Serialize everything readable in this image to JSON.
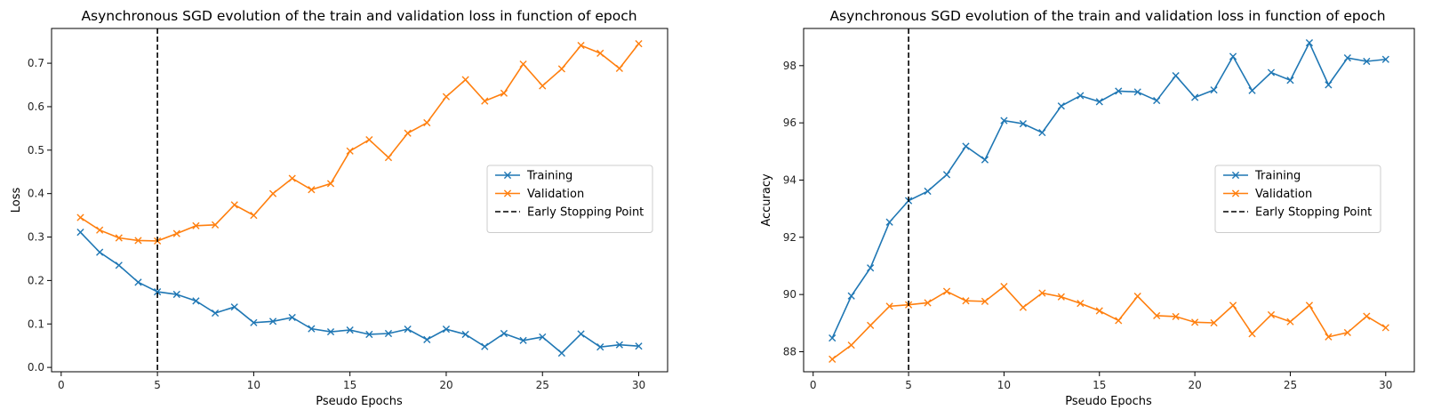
{
  "chart_data": [
    {
      "type": "line",
      "title": "Asynchronous SGD evolution of the train and validation loss in function of epoch",
      "xlabel": "Pseudo Epochs",
      "ylabel": "Loss",
      "xlim": [
        -0.5,
        31.5
      ],
      "ylim": [
        -0.01,
        0.78
      ],
      "xticks": [
        0,
        5,
        10,
        15,
        20,
        25,
        30
      ],
      "yticks": [
        0.0,
        0.1,
        0.2,
        0.3,
        0.4,
        0.5,
        0.6,
        0.7
      ],
      "ytick_labels": [
        "0.0",
        "0.1",
        "0.2",
        "0.3",
        "0.4",
        "0.5",
        "0.6",
        "0.7"
      ],
      "legend": "center-right",
      "grid": false,
      "x": [
        1,
        2,
        3,
        4,
        5,
        6,
        7,
        8,
        9,
        10,
        11,
        12,
        13,
        14,
        15,
        16,
        17,
        18,
        19,
        20,
        21,
        22,
        23,
        24,
        25,
        26,
        27,
        28,
        29,
        30
      ],
      "series": [
        {
          "name": "Training",
          "color": "#1f77b4",
          "marker": "x",
          "values": [
            0.311,
            0.265,
            0.235,
            0.196,
            0.174,
            0.168,
            0.153,
            0.125,
            0.139,
            0.103,
            0.106,
            0.115,
            0.089,
            0.082,
            0.086,
            0.076,
            0.078,
            0.088,
            0.064,
            0.088,
            0.076,
            0.048,
            0.078,
            0.062,
            0.07,
            0.033,
            0.077,
            0.047,
            0.052,
            0.049
          ]
        },
        {
          "name": "Validation",
          "color": "#ff7f0e",
          "marker": "x",
          "values": [
            0.345,
            0.316,
            0.298,
            0.292,
            0.291,
            0.308,
            0.326,
            0.328,
            0.374,
            0.35,
            0.4,
            0.435,
            0.409,
            0.423,
            0.498,
            0.524,
            0.483,
            0.539,
            0.563,
            0.623,
            0.662,
            0.613,
            0.631,
            0.698,
            0.648,
            0.687,
            0.741,
            0.723,
            0.688,
            0.745
          ]
        }
      ],
      "vline": {
        "x": 5,
        "name": "Early Stopping Point",
        "color": "#000000",
        "style": "dashed"
      }
    },
    {
      "type": "line",
      "title": "Asynchronous SGD evolution of the train and validation loss in function of epoch",
      "xlabel": "Pseudo Epochs",
      "ylabel": "Accuracy",
      "xlim": [
        -0.5,
        31.5
      ],
      "ylim": [
        87.3,
        99.3
      ],
      "xticks": [
        0,
        5,
        10,
        15,
        20,
        25,
        30
      ],
      "yticks": [
        88,
        90,
        92,
        94,
        96,
        98
      ],
      "ytick_labels": [
        "88",
        "90",
        "92",
        "94",
        "96",
        "98"
      ],
      "legend": "center-right",
      "grid": false,
      "x": [
        1,
        2,
        3,
        4,
        5,
        6,
        7,
        8,
        9,
        10,
        11,
        12,
        13,
        14,
        15,
        16,
        17,
        18,
        19,
        20,
        21,
        22,
        23,
        24,
        25,
        26,
        27,
        28,
        29,
        30
      ],
      "series": [
        {
          "name": "Training",
          "color": "#1f77b4",
          "marker": "x",
          "values": [
            88.48,
            89.95,
            90.93,
            92.53,
            93.28,
            93.61,
            94.19,
            95.18,
            94.71,
            96.08,
            95.97,
            95.66,
            96.59,
            96.95,
            96.74,
            97.11,
            97.08,
            96.78,
            97.65,
            96.89,
            97.15,
            98.32,
            97.13,
            97.76,
            97.49,
            98.8,
            97.33,
            98.27,
            98.15,
            98.22
          ]
        },
        {
          "name": "Validation",
          "color": "#ff7f0e",
          "marker": "x",
          "values": [
            87.74,
            88.23,
            88.92,
            89.59,
            89.64,
            89.71,
            90.11,
            89.78,
            89.76,
            90.28,
            89.55,
            90.05,
            89.92,
            89.69,
            89.43,
            89.09,
            89.94,
            89.26,
            89.23,
            89.03,
            89.01,
            89.62,
            88.63,
            89.29,
            89.05,
            89.62,
            88.52,
            88.67,
            89.24,
            88.84
          ]
        }
      ],
      "vline": {
        "x": 5,
        "name": "Early Stopping Point",
        "color": "#000000",
        "style": "dashed"
      }
    }
  ]
}
